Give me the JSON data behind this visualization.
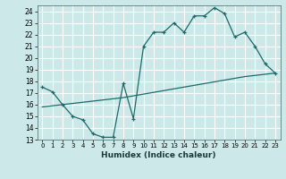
{
  "xlabel": "Humidex (Indice chaleur)",
  "bg_color": "#cde8e8",
  "grid_color": "#b0d4d4",
  "line_color": "#1a6b6b",
  "xlim": [
    -0.5,
    23.5
  ],
  "ylim": [
    13,
    24.5
  ],
  "yticks": [
    13,
    14,
    15,
    16,
    17,
    18,
    19,
    20,
    21,
    22,
    23,
    24
  ],
  "xticks": [
    0,
    1,
    2,
    3,
    4,
    5,
    6,
    7,
    8,
    9,
    10,
    11,
    12,
    13,
    14,
    15,
    16,
    17,
    18,
    19,
    20,
    21,
    22,
    23
  ],
  "curve_x": [
    0,
    1,
    2,
    3,
    4,
    5,
    6,
    7,
    8,
    9,
    10,
    11,
    12,
    13,
    14,
    15,
    16,
    17,
    18,
    19,
    20,
    21,
    22,
    23
  ],
  "curve_y": [
    17.5,
    17.1,
    16.0,
    15.0,
    14.7,
    13.5,
    13.2,
    13.2,
    17.8,
    14.8,
    21.0,
    22.2,
    22.2,
    23.0,
    22.2,
    23.6,
    23.6,
    24.3,
    23.8,
    21.8,
    22.2,
    21.0,
    19.5,
    18.7
  ],
  "trend_x": [
    0,
    1,
    2,
    3,
    4,
    5,
    6,
    7,
    8,
    9,
    10,
    11,
    12,
    13,
    14,
    15,
    16,
    17,
    18,
    19,
    20,
    21,
    22,
    23
  ],
  "trend_y": [
    15.8,
    15.9,
    16.0,
    16.1,
    16.2,
    16.3,
    16.4,
    16.5,
    16.6,
    16.75,
    16.9,
    17.05,
    17.2,
    17.35,
    17.5,
    17.65,
    17.8,
    17.95,
    18.1,
    18.25,
    18.4,
    18.5,
    18.6,
    18.7
  ]
}
